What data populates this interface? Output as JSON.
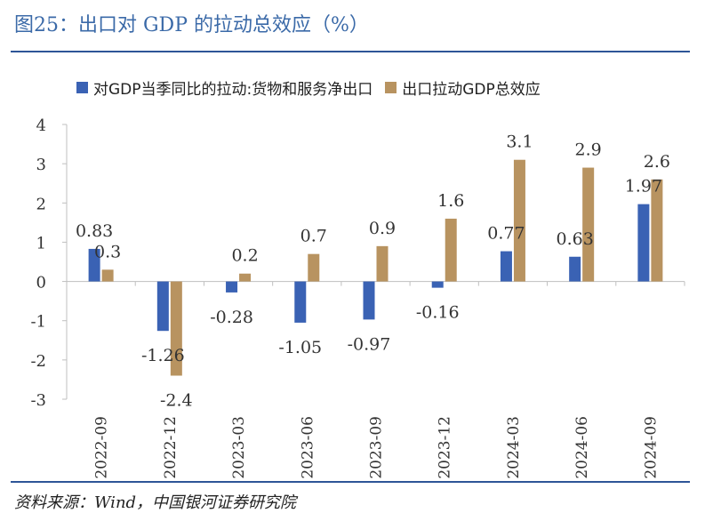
{
  "header": {
    "title": "图25：出口对 GDP 的拉动总效应（%）"
  },
  "footer": {
    "source": "资料来源：Wind，中国银河证券研究院"
  },
  "colors": {
    "accent": "#2e5597",
    "series1": "#3a62b4",
    "series2": "#b89360"
  },
  "chart_data": {
    "type": "bar",
    "title": "出口对 GDP 的拉动总效应（%）",
    "xlabel": "",
    "ylabel": "",
    "ylim": [
      -3,
      4
    ],
    "yticks": [
      4,
      3,
      2,
      1,
      0,
      -1,
      -2,
      -3
    ],
    "legend_position": "top",
    "grid": false,
    "categories": [
      "2022-09",
      "2022-12",
      "2023-03",
      "2023-06",
      "2023-09",
      "2023-12",
      "2024-03",
      "2024-06",
      "2024-09"
    ],
    "series": [
      {
        "name": "对GDP当季同比的拉动:货物和服务净出口",
        "color": "#3a62b4",
        "values": [
          0.83,
          -1.26,
          -0.28,
          -1.05,
          -0.97,
          -0.16,
          0.77,
          0.63,
          1.97
        ],
        "labels": [
          "0.83",
          "-1.26",
          "-0.28",
          "-1.05",
          "-0.97",
          "-0.16",
          "0.77",
          "0.63",
          "1.97"
        ]
      },
      {
        "name": "出口拉动GDP总效应",
        "color": "#b89360",
        "values": [
          0.3,
          -2.4,
          0.2,
          0.7,
          0.9,
          1.6,
          3.1,
          2.9,
          2.6
        ],
        "labels": [
          "0.3",
          "-2.4",
          "0.2",
          "0.7",
          "0.9",
          "1.6",
          "3.1",
          "2.9",
          "2.6"
        ]
      }
    ]
  }
}
